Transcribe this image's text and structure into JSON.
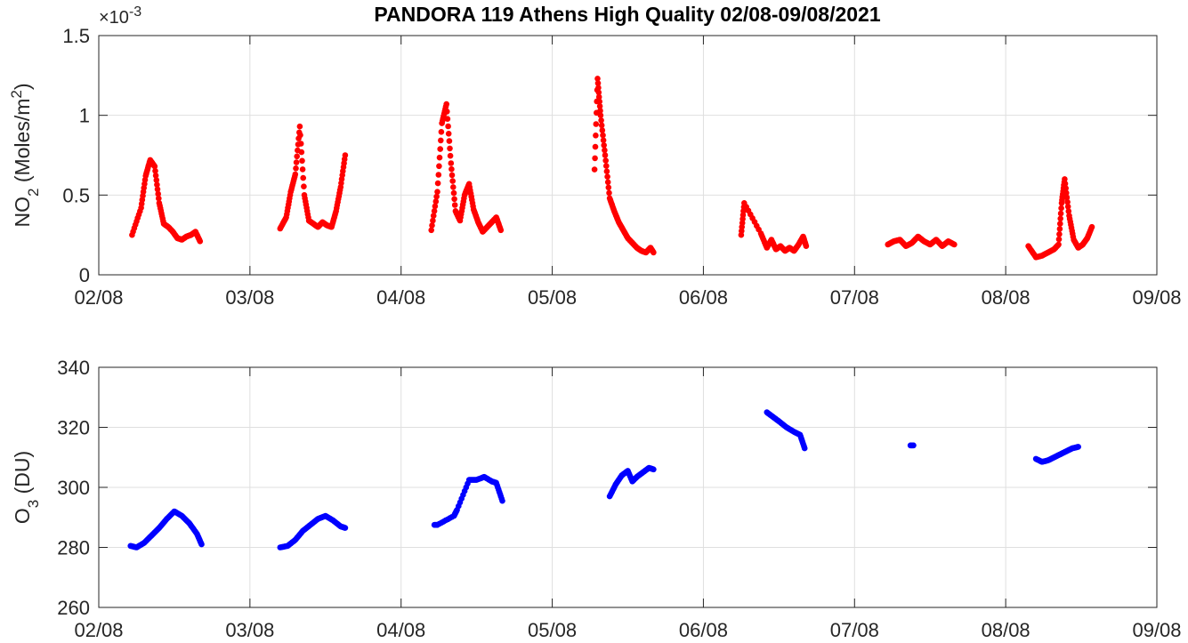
{
  "chart_data": [
    {
      "type": "scatter",
      "title": "PANDORA 119 Athens High Quality 02/08-09/08/2021",
      "ylabel": {
        "base": "NO",
        "sub": "2",
        "rest": " (Moles/m",
        "sup": "2",
        "end": ")"
      },
      "exponent_label": "×10-3",
      "exponent": {
        "base": "×10",
        "power": "-3"
      },
      "xlim": [
        "02/08",
        "09/08"
      ],
      "ylim": [
        0,
        0.0015
      ],
      "xticks": [
        "02/08",
        "03/08",
        "04/08",
        "05/08",
        "06/08",
        "07/08",
        "08/08",
        "09/08"
      ],
      "yticks": [
        0,
        0.0005,
        0.001,
        0.0015
      ],
      "ytick_labels": [
        "0",
        "0.5",
        "1",
        "1.5"
      ],
      "grid": true,
      "color": "#ff0000",
      "segments": [
        {
          "x": [
            2.22,
            2.28,
            2.31,
            2.34,
            2.37,
            2.4,
            2.43,
            2.46,
            2.49,
            2.52,
            2.55,
            2.58,
            2.61,
            2.64,
            2.67
          ],
          "y": [
            0.00025,
            0.00042,
            0.00062,
            0.00072,
            0.00068,
            0.00045,
            0.00032,
            0.0003,
            0.00027,
            0.00023,
            0.00022,
            0.00024,
            0.00025,
            0.00027,
            0.00021
          ]
        },
        {
          "x": [
            3.2,
            3.24,
            3.27,
            3.3,
            3.33,
            3.36,
            3.39,
            3.42,
            3.45,
            3.48,
            3.51,
            3.54,
            3.57,
            3.6,
            3.63
          ],
          "y": [
            0.00029,
            0.00036,
            0.00052,
            0.00063,
            0.00093,
            0.0005,
            0.00034,
            0.00032,
            0.0003,
            0.00033,
            0.00031,
            0.0003,
            0.0004,
            0.00055,
            0.00075
          ]
        },
        {
          "x": [
            4.2,
            4.24,
            4.27,
            4.3,
            4.33,
            4.36,
            4.39,
            4.42,
            4.45,
            4.48,
            4.51,
            4.54,
            4.57,
            4.6,
            4.63,
            4.66
          ],
          "y": [
            0.00028,
            0.00052,
            0.00095,
            0.00107,
            0.0007,
            0.0004,
            0.00034,
            0.0005,
            0.00057,
            0.00041,
            0.00033,
            0.00027,
            0.0003,
            0.00033,
            0.00036,
            0.00028
          ]
        },
        {
          "x": [
            5.28,
            5.3,
            5.32,
            5.35,
            5.38,
            5.41,
            5.44,
            5.47,
            5.5,
            5.53,
            5.56,
            5.59,
            5.62,
            5.65,
            5.67
          ],
          "y": [
            0.00066,
            0.00123,
            0.001,
            0.00075,
            0.00048,
            0.0004,
            0.00033,
            0.00028,
            0.00023,
            0.0002,
            0.00017,
            0.00015,
            0.00014,
            0.00017,
            0.00014
          ]
        },
        {
          "x": [
            6.25,
            6.27,
            6.38,
            6.42,
            6.45,
            6.48,
            6.51,
            6.54,
            6.57,
            6.6,
            6.63,
            6.66,
            6.68
          ],
          "y": [
            0.00025,
            0.00045,
            0.00026,
            0.00017,
            0.00022,
            0.00016,
            0.00018,
            0.00015,
            0.00017,
            0.00015,
            0.00019,
            0.00024,
            0.00018
          ]
        },
        {
          "x": [
            7.22,
            7.26,
            7.3,
            7.34,
            7.38,
            7.42,
            7.46,
            7.5,
            7.54,
            7.58,
            7.62,
            7.66
          ],
          "y": [
            0.00019,
            0.00021,
            0.00022,
            0.00018,
            0.0002,
            0.00024,
            0.00021,
            0.00019,
            0.00022,
            0.00018,
            0.00021,
            0.00019
          ]
        },
        {
          "x": [
            8.15,
            8.2,
            8.24,
            8.28,
            8.32,
            8.35,
            8.37,
            8.39,
            8.42,
            8.45,
            8.48,
            8.51,
            8.54,
            8.57
          ],
          "y": [
            0.00018,
            0.00011,
            0.00012,
            0.00014,
            0.00016,
            0.00019,
            0.00045,
            0.0006,
            0.00037,
            0.00022,
            0.00017,
            0.00019,
            0.00023,
            0.0003
          ]
        }
      ]
    },
    {
      "type": "scatter",
      "ylabel": {
        "base": "O",
        "sub": "3",
        "rest": " (DU)",
        "sup": "",
        "end": ""
      },
      "xlim": [
        "02/08",
        "09/08"
      ],
      "ylim": [
        260,
        340
      ],
      "xticks": [
        "02/08",
        "03/08",
        "04/08",
        "05/08",
        "06/08",
        "07/08",
        "08/08",
        "09/08"
      ],
      "yticks": [
        260,
        280,
        300,
        320,
        340
      ],
      "ytick_labels": [
        "260",
        "280",
        "300",
        "320",
        "340"
      ],
      "grid": true,
      "color": "#0000ff",
      "segments": [
        {
          "x": [
            2.21,
            2.25,
            2.3,
            2.35,
            2.4,
            2.45,
            2.5,
            2.55,
            2.6,
            2.65,
            2.68
          ],
          "y": [
            280.5,
            280.0,
            281.5,
            284.0,
            286.5,
            289.5,
            292.0,
            290.5,
            288.0,
            284.5,
            281.0
          ]
        },
        {
          "x": [
            3.2,
            3.25,
            3.3,
            3.35,
            3.4,
            3.45,
            3.5,
            3.55,
            3.6,
            3.63
          ],
          "y": [
            280.0,
            280.5,
            282.5,
            285.5,
            287.5,
            289.5,
            290.5,
            289.0,
            287.0,
            286.5
          ]
        },
        {
          "x": [
            4.22,
            4.24,
            4.35,
            4.37,
            4.45,
            4.5,
            4.55,
            4.6,
            4.63,
            4.67
          ],
          "y": [
            287.5,
            287.5,
            290.5,
            292.5,
            302.5,
            302.5,
            303.5,
            302.0,
            301.5,
            295.5
          ]
        },
        {
          "x": [
            5.38,
            5.42,
            5.46,
            5.5,
            5.53,
            5.56,
            5.6,
            5.64,
            5.67
          ],
          "y": [
            297.0,
            301.0,
            304.0,
            305.5,
            302.0,
            303.5,
            305.0,
            306.5,
            306.0
          ]
        },
        {
          "x": [
            6.42,
            6.46,
            6.5,
            6.55,
            6.6,
            6.64,
            6.67
          ],
          "y": [
            325.0,
            323.5,
            322.0,
            320.0,
            318.5,
            317.5,
            313.0
          ]
        },
        {
          "x": [
            7.37,
            7.39
          ],
          "y": [
            314.0,
            314.0
          ]
        },
        {
          "x": [
            8.2,
            8.24,
            8.28,
            8.32,
            8.36,
            8.4,
            8.44,
            8.48
          ],
          "y": [
            309.5,
            308.5,
            309.0,
            310.0,
            311.0,
            312.0,
            313.0,
            313.5
          ]
        }
      ]
    }
  ]
}
